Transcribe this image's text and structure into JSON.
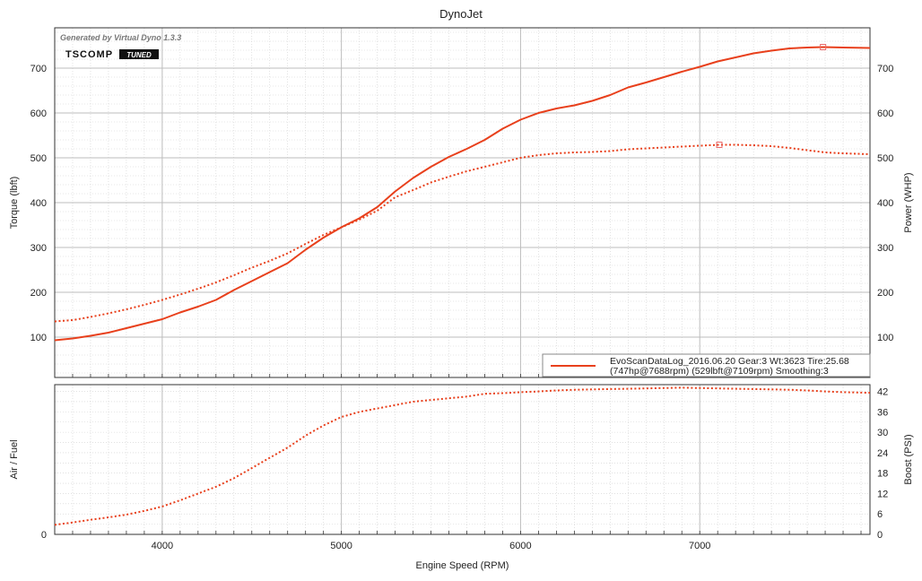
{
  "app": {
    "title": "DynoJet",
    "generated_by": "Generated by Virtual Dyno 1.3.3",
    "logo": {
      "brand": "TSCOMP",
      "badge": "TUNED"
    }
  },
  "legend": {
    "line1": "EvoScanDataLog_2016.06.20 Gear:3 Wt:3623 Tire:25.68",
    "line2": "(747hp@7688rpm) (529lbft@7109rpm) Smoothing:3",
    "color": "#e8401c"
  },
  "colors": {
    "series": "#e8401c",
    "major_grid": "#bdbdbd",
    "minor_grid": "#cfcfcf",
    "frame": "#333333"
  },
  "chart_data": [
    {
      "type": "line",
      "title": "DynoJet",
      "xlabel": "",
      "ylabel": "Torque (lbft)",
      "y2label": "Power (WHP)",
      "xlim": [
        3400,
        7950
      ],
      "ylim": [
        10,
        790
      ],
      "x_ticks": [
        4000,
        5000,
        6000,
        7000
      ],
      "y_ticks": [
        100,
        200,
        300,
        400,
        500,
        600,
        700
      ],
      "y2_ticks": [
        100,
        200,
        300,
        400,
        500,
        600,
        700
      ],
      "grid": true,
      "legend_position": "bottom-right",
      "series": [
        {
          "name": "Power",
          "style": "solid",
          "x": [
            3400,
            3500,
            3600,
            3700,
            3800,
            3900,
            4000,
            4100,
            4200,
            4300,
            4400,
            4500,
            4600,
            4700,
            4800,
            4900,
            5000,
            5100,
            5200,
            5300,
            5400,
            5500,
            5600,
            5700,
            5800,
            5900,
            6000,
            6100,
            6200,
            6300,
            6400,
            6500,
            6600,
            6700,
            6800,
            6900,
            7000,
            7100,
            7200,
            7300,
            7400,
            7500,
            7600,
            7688,
            7800,
            7950
          ],
          "values": [
            93,
            97,
            103,
            110,
            120,
            130,
            140,
            155,
            168,
            183,
            205,
            225,
            245,
            265,
            295,
            322,
            345,
            365,
            390,
            425,
            455,
            480,
            502,
            520,
            540,
            565,
            585,
            600,
            610,
            617,
            627,
            640,
            657,
            668,
            680,
            692,
            703,
            715,
            724,
            733,
            739,
            744,
            746,
            747,
            746,
            745
          ],
          "peak": {
            "x": 7688,
            "y": 747
          }
        },
        {
          "name": "Torque",
          "style": "dotted",
          "x": [
            3400,
            3500,
            3600,
            3700,
            3800,
            3900,
            4000,
            4100,
            4200,
            4300,
            4400,
            4500,
            4600,
            4700,
            4800,
            4900,
            5000,
            5100,
            5200,
            5300,
            5400,
            5500,
            5600,
            5700,
            5800,
            5900,
            6000,
            6100,
            6200,
            6300,
            6400,
            6500,
            6600,
            6700,
            6800,
            6900,
            7000,
            7109,
            7200,
            7300,
            7400,
            7500,
            7600,
            7700,
            7800,
            7950
          ],
          "values": [
            135,
            138,
            145,
            153,
            162,
            172,
            183,
            195,
            208,
            222,
            238,
            255,
            270,
            287,
            308,
            328,
            345,
            362,
            382,
            412,
            428,
            445,
            458,
            470,
            480,
            490,
            500,
            506,
            510,
            512,
            513,
            515,
            519,
            521,
            523,
            525,
            527,
            529,
            529,
            528,
            526,
            522,
            517,
            512,
            510,
            508
          ],
          "peak": {
            "x": 7109,
            "y": 529
          }
        }
      ]
    },
    {
      "type": "line",
      "xlabel": "Engine Speed (RPM)",
      "ylabel": "Air / Fuel",
      "y2label": "Boost (PSI)",
      "xlim": [
        3400,
        7950
      ],
      "ylim": [
        0,
        44
      ],
      "x_ticks": [
        4000,
        5000,
        6000,
        7000
      ],
      "y_ticks": [
        0
      ],
      "y2_ticks": [
        0,
        6,
        12,
        18,
        24,
        30,
        36,
        42
      ],
      "grid": true,
      "series": [
        {
          "name": "Boost",
          "style": "dotted",
          "x": [
            3400,
            3500,
            3600,
            3700,
            3800,
            3900,
            4000,
            4100,
            4200,
            4300,
            4400,
            4500,
            4600,
            4700,
            4800,
            4900,
            5000,
            5100,
            5200,
            5300,
            5400,
            5500,
            5600,
            5700,
            5800,
            5900,
            6000,
            6100,
            6200,
            6300,
            6400,
            6500,
            6600,
            6700,
            6800,
            6900,
            7000,
            7100,
            7200,
            7300,
            7400,
            7500,
            7600,
            7700,
            7800,
            7950
          ],
          "values": [
            2.8,
            3.5,
            4.3,
            5.0,
            5.8,
            6.9,
            8.2,
            10.0,
            12.0,
            14.0,
            16.5,
            19.5,
            22.5,
            25.5,
            29.0,
            32.0,
            34.5,
            36.0,
            37.0,
            38.0,
            39.0,
            39.5,
            40.0,
            40.5,
            41.3,
            41.5,
            41.8,
            42.0,
            42.3,
            42.5,
            42.6,
            42.7,
            42.8,
            42.9,
            43.0,
            43.1,
            43.0,
            42.9,
            42.8,
            42.7,
            42.6,
            42.5,
            42.3,
            42.0,
            41.8,
            41.6
          ]
        }
      ]
    }
  ]
}
